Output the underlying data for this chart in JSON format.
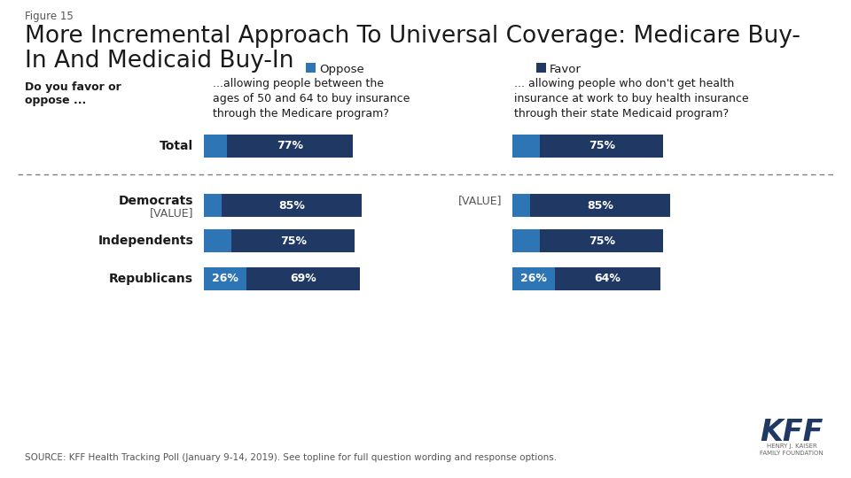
{
  "figure_label": "Figure 15",
  "title_line1": "More Incremental Approach To Universal Coverage: Medicare Buy-",
  "title_line2": "In And Medicaid Buy-In",
  "legend_oppose": "Oppose",
  "legend_favor": "Favor",
  "oppose_color": "#2E75B6",
  "favor_color": "#1F3864",
  "col1_header": "...allowing people between the\nages of 50 and 64 to buy insurance\nthrough the Medicare program?",
  "col2_header": "... allowing people who don't get health\ninsurance at work to buy health insurance\nthrough their state Medicaid program?",
  "row_label": "Do you favor or\noppose ...",
  "col1_oppose": [
    14,
    11,
    17,
    26
  ],
  "col1_favor": [
    77,
    85,
    75,
    69
  ],
  "col2_oppose": [
    17,
    11,
    17,
    26
  ],
  "col2_favor": [
    75,
    85,
    75,
    64
  ],
  "col1_oppose_labels": [
    "",
    "",
    "",
    "26%"
  ],
  "col1_favor_labels": [
    "77%",
    "85%",
    "75%",
    "69%"
  ],
  "col2_oppose_labels": [
    "",
    "",
    "",
    "26%"
  ],
  "col2_favor_labels": [
    "75%",
    "85%",
    "75%",
    "64%"
  ],
  "source_text": "SOURCE: KFF Health Tracking Poll (January 9-14, 2019). See topline for full question wording and response options.",
  "background_color": "#FFFFFF",
  "cat_labels": [
    "Total",
    "Democrats",
    "Independents",
    "Republicans"
  ],
  "dem_sublabel": "[VALUE]",
  "right_dem_label": "[VALUE]"
}
